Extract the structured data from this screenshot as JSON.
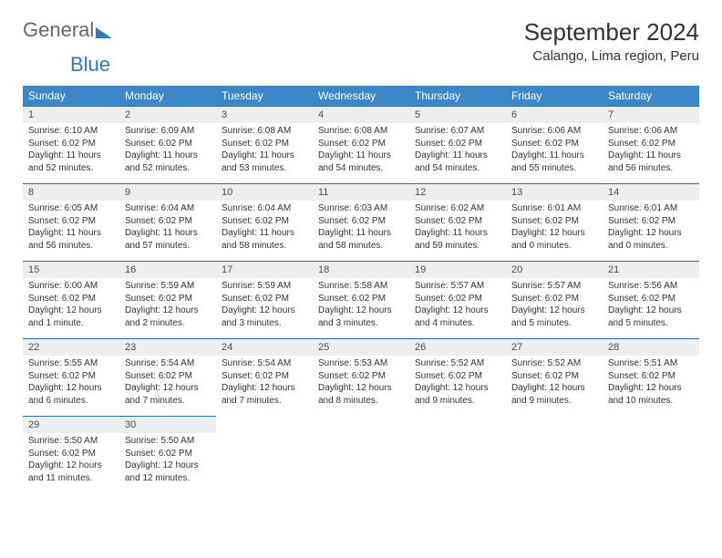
{
  "logo": {
    "general": "General",
    "blue": "Blue"
  },
  "title": "September 2024",
  "location": "Calango, Lima region, Peru",
  "colors": {
    "header_bg": "#3b87c8",
    "header_text": "#ffffff",
    "date_bg": "#eceeef",
    "border": "#2a6ca8",
    "logo_gray": "#5e6a74",
    "logo_blue": "#2f78c2"
  },
  "day_names": [
    "Sunday",
    "Monday",
    "Tuesday",
    "Wednesday",
    "Thursday",
    "Friday",
    "Saturday"
  ],
  "weeks": [
    [
      {
        "date": "1",
        "sunrise": "Sunrise: 6:10 AM",
        "sunset": "Sunset: 6:02 PM",
        "daylight": "Daylight: 11 hours and 52 minutes."
      },
      {
        "date": "2",
        "sunrise": "Sunrise: 6:09 AM",
        "sunset": "Sunset: 6:02 PM",
        "daylight": "Daylight: 11 hours and 52 minutes."
      },
      {
        "date": "3",
        "sunrise": "Sunrise: 6:08 AM",
        "sunset": "Sunset: 6:02 PM",
        "daylight": "Daylight: 11 hours and 53 minutes."
      },
      {
        "date": "4",
        "sunrise": "Sunrise: 6:08 AM",
        "sunset": "Sunset: 6:02 PM",
        "daylight": "Daylight: 11 hours and 54 minutes."
      },
      {
        "date": "5",
        "sunrise": "Sunrise: 6:07 AM",
        "sunset": "Sunset: 6:02 PM",
        "daylight": "Daylight: 11 hours and 54 minutes."
      },
      {
        "date": "6",
        "sunrise": "Sunrise: 6:06 AM",
        "sunset": "Sunset: 6:02 PM",
        "daylight": "Daylight: 11 hours and 55 minutes."
      },
      {
        "date": "7",
        "sunrise": "Sunrise: 6:06 AM",
        "sunset": "Sunset: 6:02 PM",
        "daylight": "Daylight: 11 hours and 56 minutes."
      }
    ],
    [
      {
        "date": "8",
        "sunrise": "Sunrise: 6:05 AM",
        "sunset": "Sunset: 6:02 PM",
        "daylight": "Daylight: 11 hours and 56 minutes."
      },
      {
        "date": "9",
        "sunrise": "Sunrise: 6:04 AM",
        "sunset": "Sunset: 6:02 PM",
        "daylight": "Daylight: 11 hours and 57 minutes."
      },
      {
        "date": "10",
        "sunrise": "Sunrise: 6:04 AM",
        "sunset": "Sunset: 6:02 PM",
        "daylight": "Daylight: 11 hours and 58 minutes."
      },
      {
        "date": "11",
        "sunrise": "Sunrise: 6:03 AM",
        "sunset": "Sunset: 6:02 PM",
        "daylight": "Daylight: 11 hours and 58 minutes."
      },
      {
        "date": "12",
        "sunrise": "Sunrise: 6:02 AM",
        "sunset": "Sunset: 6:02 PM",
        "daylight": "Daylight: 11 hours and 59 minutes."
      },
      {
        "date": "13",
        "sunrise": "Sunrise: 6:01 AM",
        "sunset": "Sunset: 6:02 PM",
        "daylight": "Daylight: 12 hours and 0 minutes."
      },
      {
        "date": "14",
        "sunrise": "Sunrise: 6:01 AM",
        "sunset": "Sunset: 6:02 PM",
        "daylight": "Daylight: 12 hours and 0 minutes."
      }
    ],
    [
      {
        "date": "15",
        "sunrise": "Sunrise: 6:00 AM",
        "sunset": "Sunset: 6:02 PM",
        "daylight": "Daylight: 12 hours and 1 minute."
      },
      {
        "date": "16",
        "sunrise": "Sunrise: 5:59 AM",
        "sunset": "Sunset: 6:02 PM",
        "daylight": "Daylight: 12 hours and 2 minutes."
      },
      {
        "date": "17",
        "sunrise": "Sunrise: 5:59 AM",
        "sunset": "Sunset: 6:02 PM",
        "daylight": "Daylight: 12 hours and 3 minutes."
      },
      {
        "date": "18",
        "sunrise": "Sunrise: 5:58 AM",
        "sunset": "Sunset: 6:02 PM",
        "daylight": "Daylight: 12 hours and 3 minutes."
      },
      {
        "date": "19",
        "sunrise": "Sunrise: 5:57 AM",
        "sunset": "Sunset: 6:02 PM",
        "daylight": "Daylight: 12 hours and 4 minutes."
      },
      {
        "date": "20",
        "sunrise": "Sunrise: 5:57 AM",
        "sunset": "Sunset: 6:02 PM",
        "daylight": "Daylight: 12 hours and 5 minutes."
      },
      {
        "date": "21",
        "sunrise": "Sunrise: 5:56 AM",
        "sunset": "Sunset: 6:02 PM",
        "daylight": "Daylight: 12 hours and 5 minutes."
      }
    ],
    [
      {
        "date": "22",
        "sunrise": "Sunrise: 5:55 AM",
        "sunset": "Sunset: 6:02 PM",
        "daylight": "Daylight: 12 hours and 6 minutes."
      },
      {
        "date": "23",
        "sunrise": "Sunrise: 5:54 AM",
        "sunset": "Sunset: 6:02 PM",
        "daylight": "Daylight: 12 hours and 7 minutes."
      },
      {
        "date": "24",
        "sunrise": "Sunrise: 5:54 AM",
        "sunset": "Sunset: 6:02 PM",
        "daylight": "Daylight: 12 hours and 7 minutes."
      },
      {
        "date": "25",
        "sunrise": "Sunrise: 5:53 AM",
        "sunset": "Sunset: 6:02 PM",
        "daylight": "Daylight: 12 hours and 8 minutes."
      },
      {
        "date": "26",
        "sunrise": "Sunrise: 5:52 AM",
        "sunset": "Sunset: 6:02 PM",
        "daylight": "Daylight: 12 hours and 9 minutes."
      },
      {
        "date": "27",
        "sunrise": "Sunrise: 5:52 AM",
        "sunset": "Sunset: 6:02 PM",
        "daylight": "Daylight: 12 hours and 9 minutes."
      },
      {
        "date": "28",
        "sunrise": "Sunrise: 5:51 AM",
        "sunset": "Sunset: 6:02 PM",
        "daylight": "Daylight: 12 hours and 10 minutes."
      }
    ],
    [
      {
        "date": "29",
        "sunrise": "Sunrise: 5:50 AM",
        "sunset": "Sunset: 6:02 PM",
        "daylight": "Daylight: 12 hours and 11 minutes."
      },
      {
        "date": "30",
        "sunrise": "Sunrise: 5:50 AM",
        "sunset": "Sunset: 6:02 PM",
        "daylight": "Daylight: 12 hours and 12 minutes."
      },
      null,
      null,
      null,
      null,
      null
    ]
  ]
}
